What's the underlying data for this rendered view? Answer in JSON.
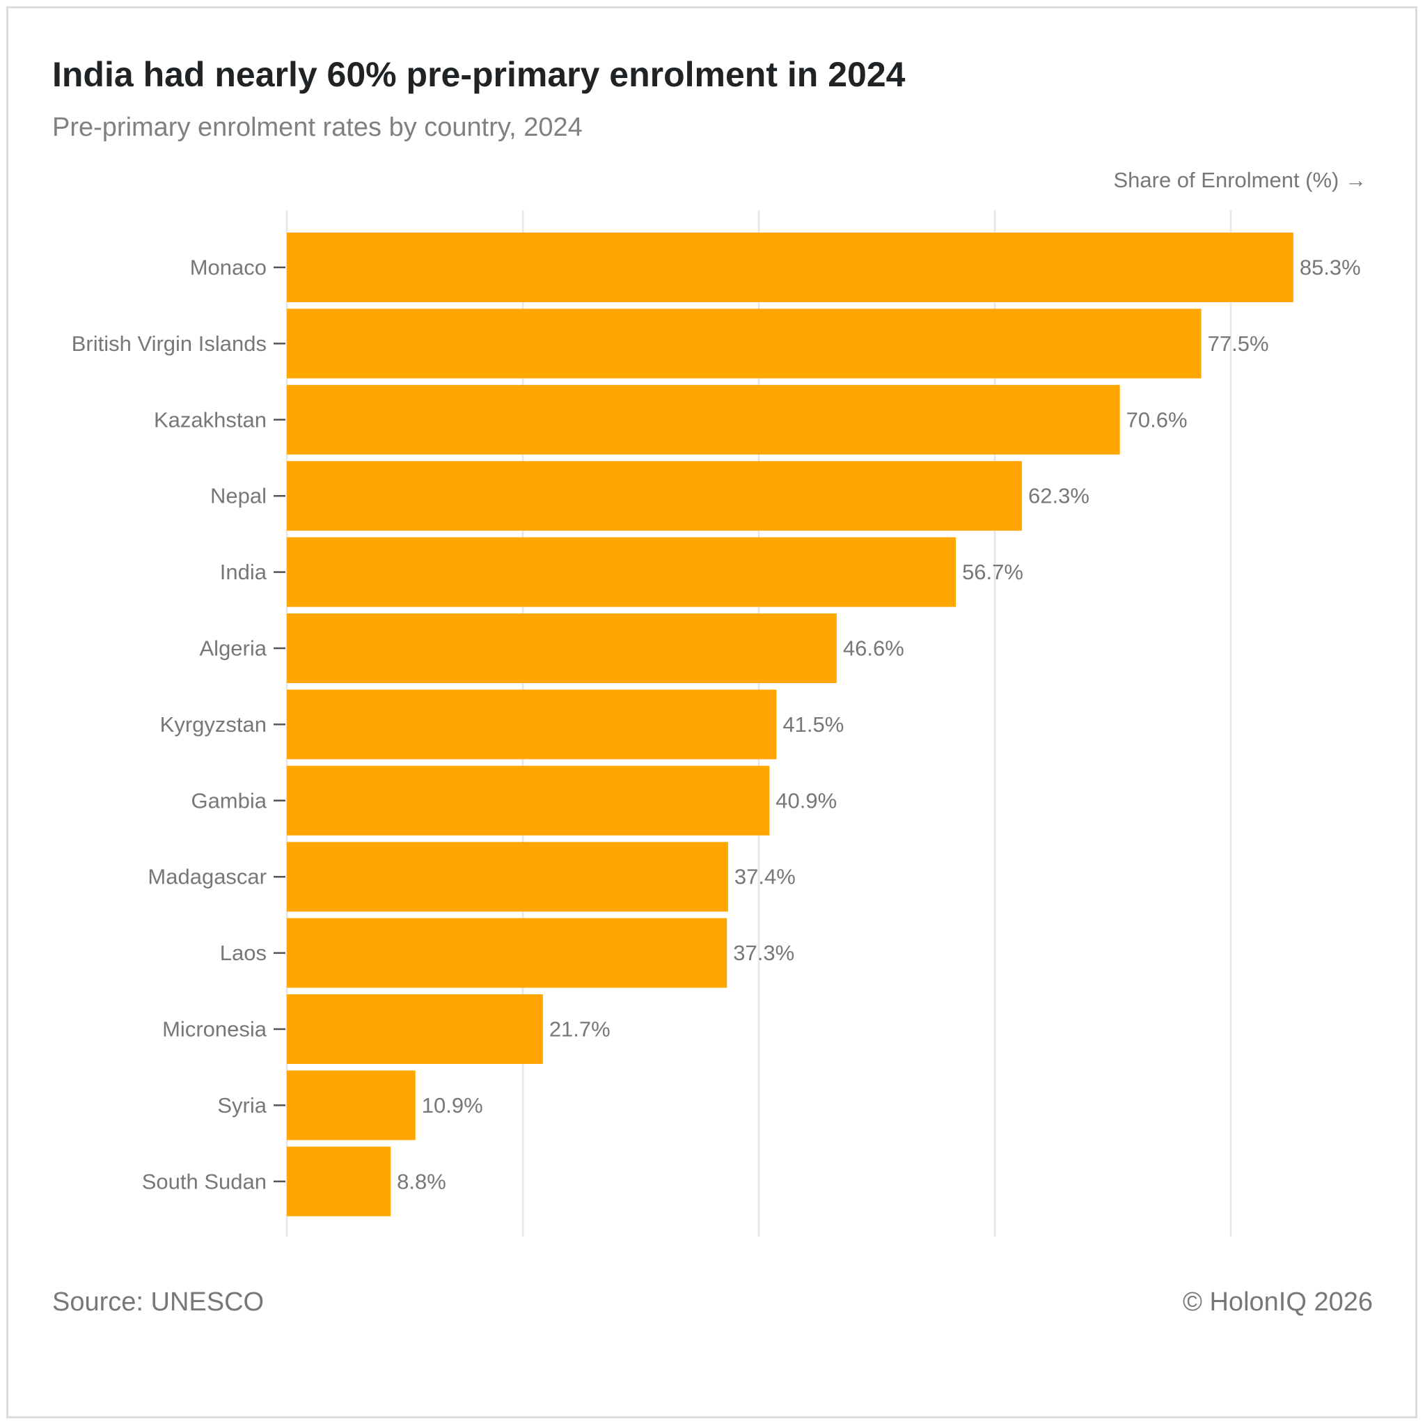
{
  "header": {
    "title": "India had nearly 60% pre-primary enrolment in 2024",
    "subtitle": "Pre-primary enrolment rates by country, 2024"
  },
  "axis": {
    "label": "Share of Enrolment (%) →"
  },
  "footer": {
    "source": "Source: UNESCO",
    "copyright": "© HolonIQ 2026"
  },
  "colors": {
    "bar": "#FFA600",
    "grid": "#E6E6E6",
    "tick": "#555555"
  },
  "chart_data": {
    "type": "bar",
    "orientation": "horizontal",
    "title": "India had nearly 60% pre-primary enrolment in 2024",
    "subtitle": "Pre-primary enrolment rates by country, 2024",
    "xlabel": "Share of Enrolment (%)",
    "ylabel": "",
    "xlim": [
      0,
      100
    ],
    "gridlines_at": [
      0,
      20,
      40,
      60,
      80
    ],
    "grid": true,
    "categories": [
      "Monaco",
      "British Virgin Islands",
      "Kazakhstan",
      "Nepal",
      "India",
      "Algeria",
      "Kyrgyzstan",
      "Gambia",
      "Madagascar",
      "Laos",
      "Micronesia ",
      "Syria",
      "South Sudan"
    ],
    "values": [
      85.3,
      77.5,
      70.6,
      62.3,
      56.7,
      46.6,
      41.5,
      40.9,
      37.4,
      37.3,
      21.7,
      10.9,
      8.8
    ],
    "value_labels": [
      "85.3%",
      "77.5%",
      "70.6%",
      "62.3%",
      "56.7%",
      "46.6%",
      "41.5%",
      "40.9%",
      "37.4%",
      "37.3%",
      "21.7%",
      "10.9%",
      "8.8%"
    ]
  }
}
